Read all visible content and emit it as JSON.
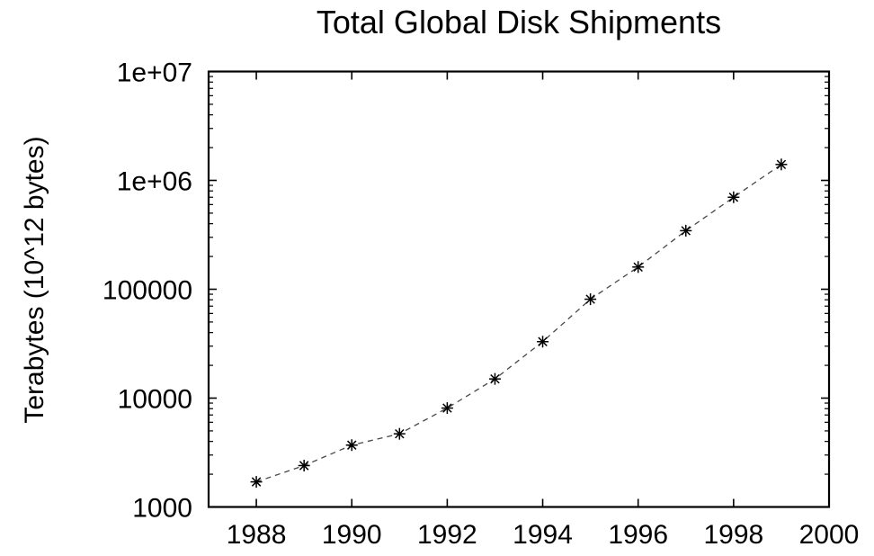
{
  "chart_data": {
    "type": "line",
    "title": "Total Global Disk Shipments",
    "xlabel": "",
    "ylabel": "Terabytes (10^12 bytes)",
    "x": [
      1988,
      1989,
      1990,
      1991,
      1992,
      1993,
      1994,
      1995,
      1996,
      1997,
      1998,
      1999
    ],
    "values": [
      1700,
      2400,
      3700,
      4700,
      8100,
      15000,
      33000,
      81000,
      160000,
      345000,
      700000,
      1400000
    ],
    "xlim": [
      1987,
      2000
    ],
    "ylim": [
      1000,
      10000000
    ],
    "y_scale": "log",
    "x_ticks": {
      "values": [
        1988,
        1990,
        1992,
        1994,
        1996,
        1998,
        2000
      ],
      "labels": [
        "1988",
        "1990",
        "1992",
        "1994",
        "1996",
        "1998",
        "2000"
      ]
    },
    "y_ticks": {
      "values": [
        1000,
        10000,
        100000,
        1000000,
        10000000
      ],
      "labels": [
        "1000",
        "10000",
        "100000",
        "1e+06",
        "1e+07"
      ]
    },
    "y_minor_ticks": true,
    "grid": false,
    "legend": "none",
    "line_style": "dashed",
    "marker": "asterisk",
    "colors": {
      "line": "#474747",
      "marker": "#000000",
      "axis": "#000000",
      "background": "#ffffff"
    }
  }
}
